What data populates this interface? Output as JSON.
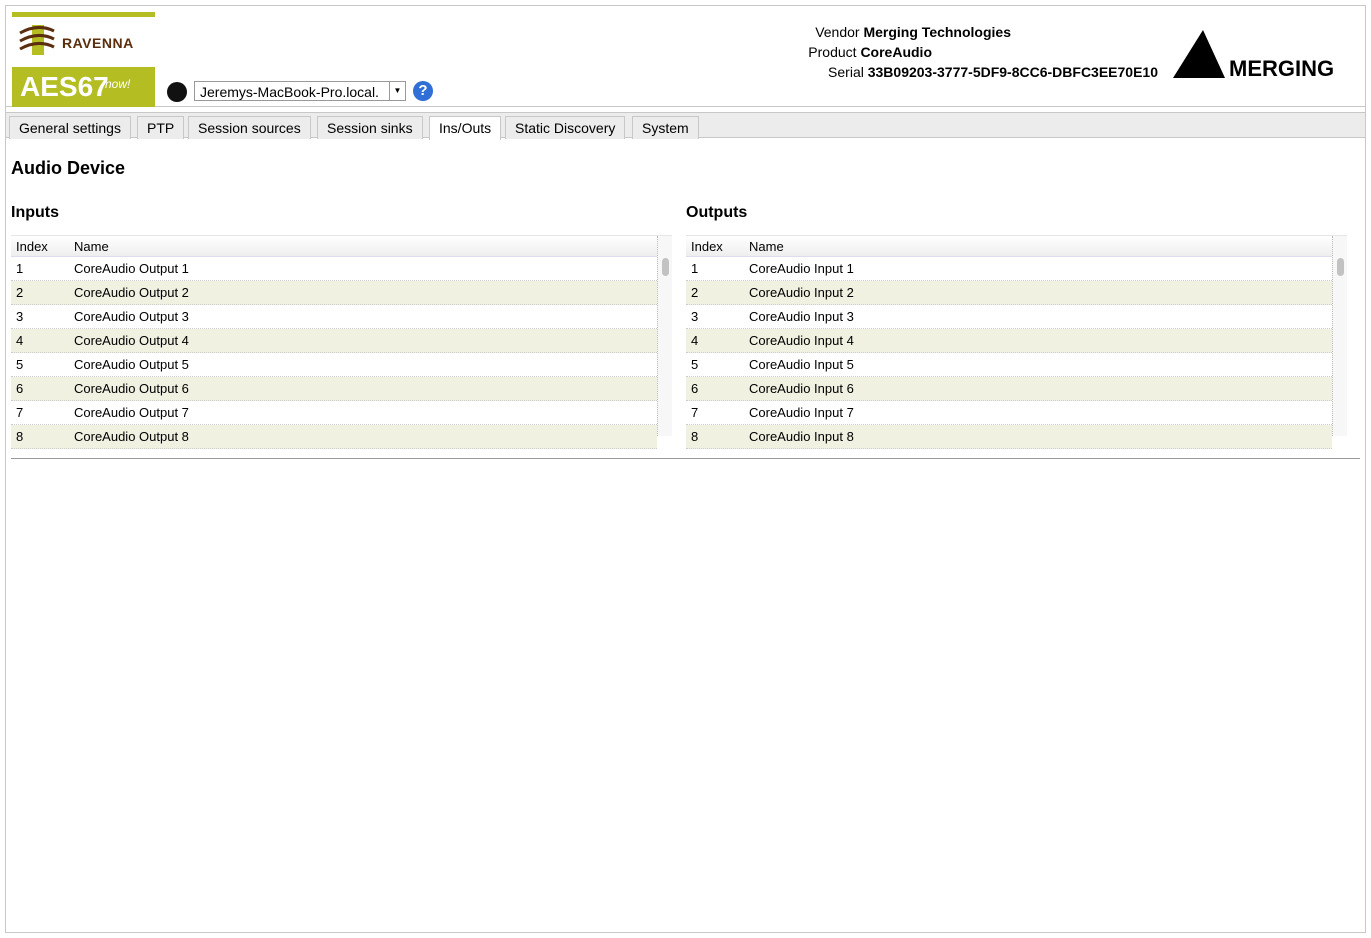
{
  "header": {
    "logo_text_top": "RAVENNA",
    "logo_text_bottom": "AES67",
    "logo_tag": "now!",
    "host": "Jeremys-MacBook-Pro.local.",
    "vendor_label": "Vendor",
    "vendor": "Merging Technologies",
    "product_label": "Product",
    "product": "CoreAudio",
    "serial_label": "Serial",
    "serial": "33B09203-3777-5DF9-8CC6-DBFC3EE70E10",
    "brand_logo": "MERGING"
  },
  "tabs": [
    {
      "label": "General settings"
    },
    {
      "label": "PTP"
    },
    {
      "label": "Session sources"
    },
    {
      "label": "Session sinks"
    },
    {
      "label": "Ins/Outs",
      "active": true
    },
    {
      "label": "Static Discovery"
    },
    {
      "label": "System"
    }
  ],
  "main": {
    "title": "Audio Device",
    "inputs": {
      "title": "Inputs",
      "columns": [
        "Index",
        "Name"
      ],
      "rows": [
        [
          "1",
          "CoreAudio Output 1"
        ],
        [
          "2",
          "CoreAudio Output 2"
        ],
        [
          "3",
          "CoreAudio Output 3"
        ],
        [
          "4",
          "CoreAudio Output 4"
        ],
        [
          "5",
          "CoreAudio Output 5"
        ],
        [
          "6",
          "CoreAudio Output 6"
        ],
        [
          "7",
          "CoreAudio Output 7"
        ],
        [
          "8",
          "CoreAudio Output 8"
        ]
      ]
    },
    "outputs": {
      "title": "Outputs",
      "columns": [
        "Index",
        "Name"
      ],
      "rows": [
        [
          "1",
          "CoreAudio Input 1"
        ],
        [
          "2",
          "CoreAudio Input 2"
        ],
        [
          "3",
          "CoreAudio Input 3"
        ],
        [
          "4",
          "CoreAudio Input 4"
        ],
        [
          "5",
          "CoreAudio Input 5"
        ],
        [
          "6",
          "CoreAudio Input 6"
        ],
        [
          "7",
          "CoreAudio Input 7"
        ],
        [
          "8",
          "CoreAudio Input 8"
        ]
      ]
    }
  },
  "colors": {
    "accent": "#b4be23",
    "row_alt": "#f0f1e1"
  }
}
